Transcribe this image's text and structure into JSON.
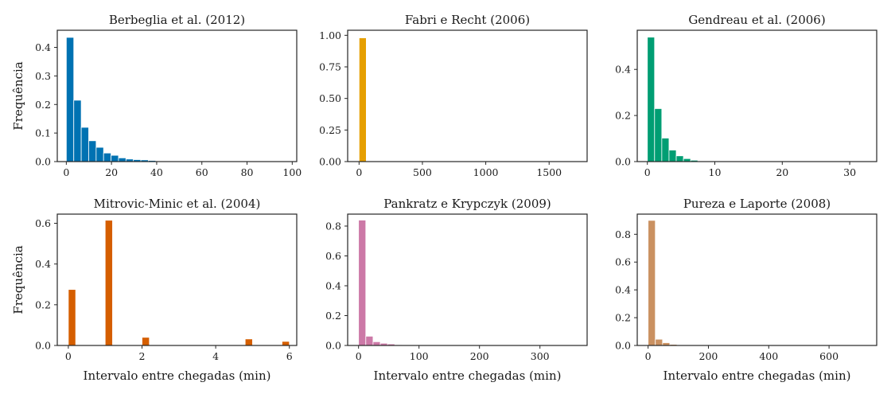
{
  "chart_data": [
    {
      "type": "bar",
      "title": "Berbeglia et al. (2012)",
      "xlabel": "",
      "ylabel": "Frequência",
      "color": "#0072b2",
      "xlim": [
        -4,
        102
      ],
      "ylim": [
        0,
        0.46
      ],
      "xticks": [
        0,
        20,
        40,
        60,
        80,
        100
      ],
      "yticks": [
        0.0,
        0.1,
        0.2,
        0.3,
        0.4
      ],
      "xtick_labels": [
        "0",
        "20",
        "40",
        "60",
        "80",
        "100"
      ],
      "ytick_labels": [
        "0.0",
        "0.1",
        "0.2",
        "0.3",
        "0.4"
      ],
      "bin_width": 3.3,
      "x": [
        0,
        3.3,
        6.6,
        9.9,
        13.2,
        16.5,
        19.8,
        23.1,
        26.4,
        29.7,
        33.0,
        36.3
      ],
      "values": [
        0.435,
        0.215,
        0.12,
        0.073,
        0.05,
        0.03,
        0.022,
        0.013,
        0.009,
        0.007,
        0.006,
        0.004
      ]
    },
    {
      "type": "bar",
      "title": "Fabri e Recht (2006)",
      "xlabel": "",
      "ylabel": "",
      "color": "#e69f00",
      "xlim": [
        -90,
        1800
      ],
      "ylim": [
        0,
        1.04
      ],
      "xticks": [
        0,
        500,
        1000,
        1500
      ],
      "yticks": [
        0.0,
        0.25,
        0.5,
        0.75,
        1.0
      ],
      "xtick_labels": [
        "0",
        "500",
        "1000",
        "1500"
      ],
      "ytick_labels": [
        "0.00",
        "0.25",
        "0.50",
        "0.75",
        "1.00"
      ],
      "bin_width": 57,
      "x": [
        0
      ],
      "values": [
        0.98
      ]
    },
    {
      "type": "bar",
      "title": "Gendreau et al. (2006)",
      "xlabel": "",
      "ylabel": "",
      "color": "#009e73",
      "xlim": [
        -1.5,
        34
      ],
      "ylim": [
        0,
        0.57
      ],
      "xticks": [
        0,
        10,
        20,
        30
      ],
      "yticks": [
        0.0,
        0.2,
        0.4
      ],
      "xtick_labels": [
        "0",
        "10",
        "20",
        "30"
      ],
      "ytick_labels": [
        "0.0",
        "0.2",
        "0.4"
      ],
      "bin_width": 1.07,
      "x": [
        0,
        1.07,
        2.14,
        3.21,
        4.28,
        5.35,
        6.42,
        7.49,
        8.56
      ],
      "values": [
        0.54,
        0.23,
        0.102,
        0.05,
        0.025,
        0.013,
        0.006,
        0.003,
        0.002
      ]
    },
    {
      "type": "bar",
      "title": "Mitrovic-Minic et al. (2004)",
      "xlabel": "Intervalo entre chegadas (min)",
      "ylabel": "Frequência",
      "color": "#d55e00",
      "xlim": [
        -0.3,
        6.2
      ],
      "ylim": [
        0,
        0.645
      ],
      "xticks": [
        0,
        2,
        4,
        6
      ],
      "yticks": [
        0.0,
        0.2,
        0.4,
        0.6
      ],
      "xtick_labels": [
        "0",
        "2",
        "4",
        "6"
      ],
      "ytick_labels": [
        "0.0",
        "0.2",
        "0.4",
        "0.6"
      ],
      "bin_width": 0.2,
      "x": [
        0,
        1.0,
        2.0,
        4.8,
        5.8
      ],
      "values": [
        0.275,
        0.615,
        0.04,
        0.032,
        0.02
      ]
    },
    {
      "type": "bar",
      "title": "Pankratz e Krypczyk (2009)",
      "xlabel": "Intervalo entre chegadas (min)",
      "ylabel": "",
      "color": "#cc79a7",
      "xlim": [
        -18,
        378
      ],
      "ylim": [
        0,
        0.88
      ],
      "xticks": [
        0,
        100,
        200,
        300
      ],
      "yticks": [
        0.0,
        0.2,
        0.4,
        0.6,
        0.8
      ],
      "xtick_labels": [
        "0",
        "100",
        "200",
        "300"
      ],
      "ytick_labels": [
        "0.0",
        "0.2",
        "0.4",
        "0.6",
        "0.8"
      ],
      "bin_width": 12,
      "x": [
        0,
        12,
        24,
        36,
        48,
        60
      ],
      "values": [
        0.84,
        0.062,
        0.025,
        0.015,
        0.01,
        0.005
      ]
    },
    {
      "type": "bar",
      "title": "Pureza e Laporte (2008)",
      "xlabel": "Intervalo entre chegadas (min)",
      "ylabel": "",
      "color": "#ca9161",
      "xlim": [
        -36,
        758
      ],
      "ylim": [
        0,
        0.945
      ],
      "xticks": [
        0,
        200,
        400,
        600
      ],
      "yticks": [
        0.0,
        0.2,
        0.4,
        0.6,
        0.8
      ],
      "xtick_labels": [
        "0",
        "200",
        "400",
        "600"
      ],
      "ytick_labels": [
        "0.0",
        "0.2",
        "0.4",
        "0.6",
        "0.8"
      ],
      "bin_width": 24,
      "x": [
        0,
        24,
        48,
        72,
        96
      ],
      "values": [
        0.9,
        0.045,
        0.02,
        0.008,
        0.004
      ]
    }
  ]
}
